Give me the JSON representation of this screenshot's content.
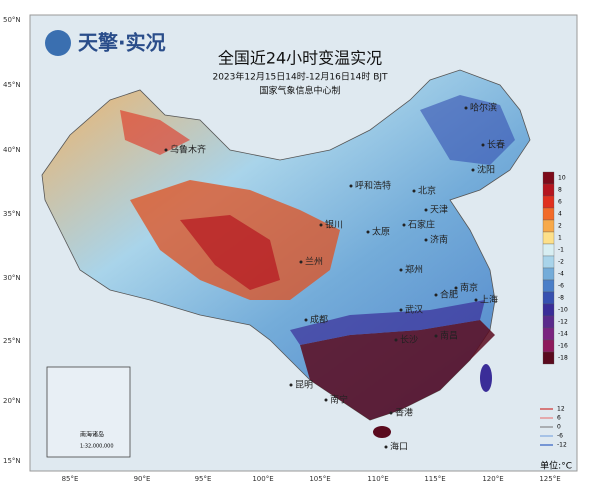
{
  "header": {
    "logo": "天擎·实况",
    "title": "全国近24小时变温实况",
    "subtitle": "2023年12月15日14时-12月16日14时 BJT",
    "credit": "国家气象信息中心制"
  },
  "lat_labels": [
    "50°N",
    "45°N",
    "40°N",
    "35°N",
    "30°N",
    "25°N",
    "20°N",
    "15°N"
  ],
  "lon_labels": [
    "85°E",
    "90°E",
    "95°E",
    "100°E",
    "105°E",
    "110°E",
    "115°E",
    "120°E",
    "125°E"
  ],
  "color_legend": {
    "labels": [
      "10",
      "8",
      "6",
      "4",
      "2",
      "1",
      "-1",
      "-2",
      "-4",
      "-6",
      "-8",
      "-10",
      "-12",
      "-14",
      "-16",
      "-18"
    ],
    "colors": [
      "#7d0a1a",
      "#b5151f",
      "#e0301f",
      "#f26b2a",
      "#f7a94a",
      "#fde08a",
      "#d8eef2",
      "#a9d4ea",
      "#74acd9",
      "#4a7ec8",
      "#3650b0",
      "#3a2d98",
      "#5a2a8c",
      "#7a2480",
      "#8e1a5c",
      "#5a0a1e"
    ]
  },
  "line_legend": {
    "labels": [
      "12",
      "6",
      "0",
      "-6",
      "-12"
    ],
    "colors": [
      "#d03030",
      "#e88080",
      "#888888",
      "#80a8e0",
      "#3060c0"
    ]
  },
  "unit": "单位:°C",
  "cities": [
    "乌鲁木齐",
    "呼和浩特",
    "哈尔滨",
    "长春",
    "沈阳",
    "北京",
    "天津",
    "石家庄",
    "太原",
    "银川",
    "兰州",
    "济南",
    "郑州",
    "合肥",
    "南京",
    "上海",
    "武汉",
    "成都",
    "长沙",
    "南昌",
    "昆明",
    "南宁",
    "香港",
    "海口"
  ],
  "inset": {
    "label": "南海诸岛",
    "scale": "1:32,000,000"
  }
}
